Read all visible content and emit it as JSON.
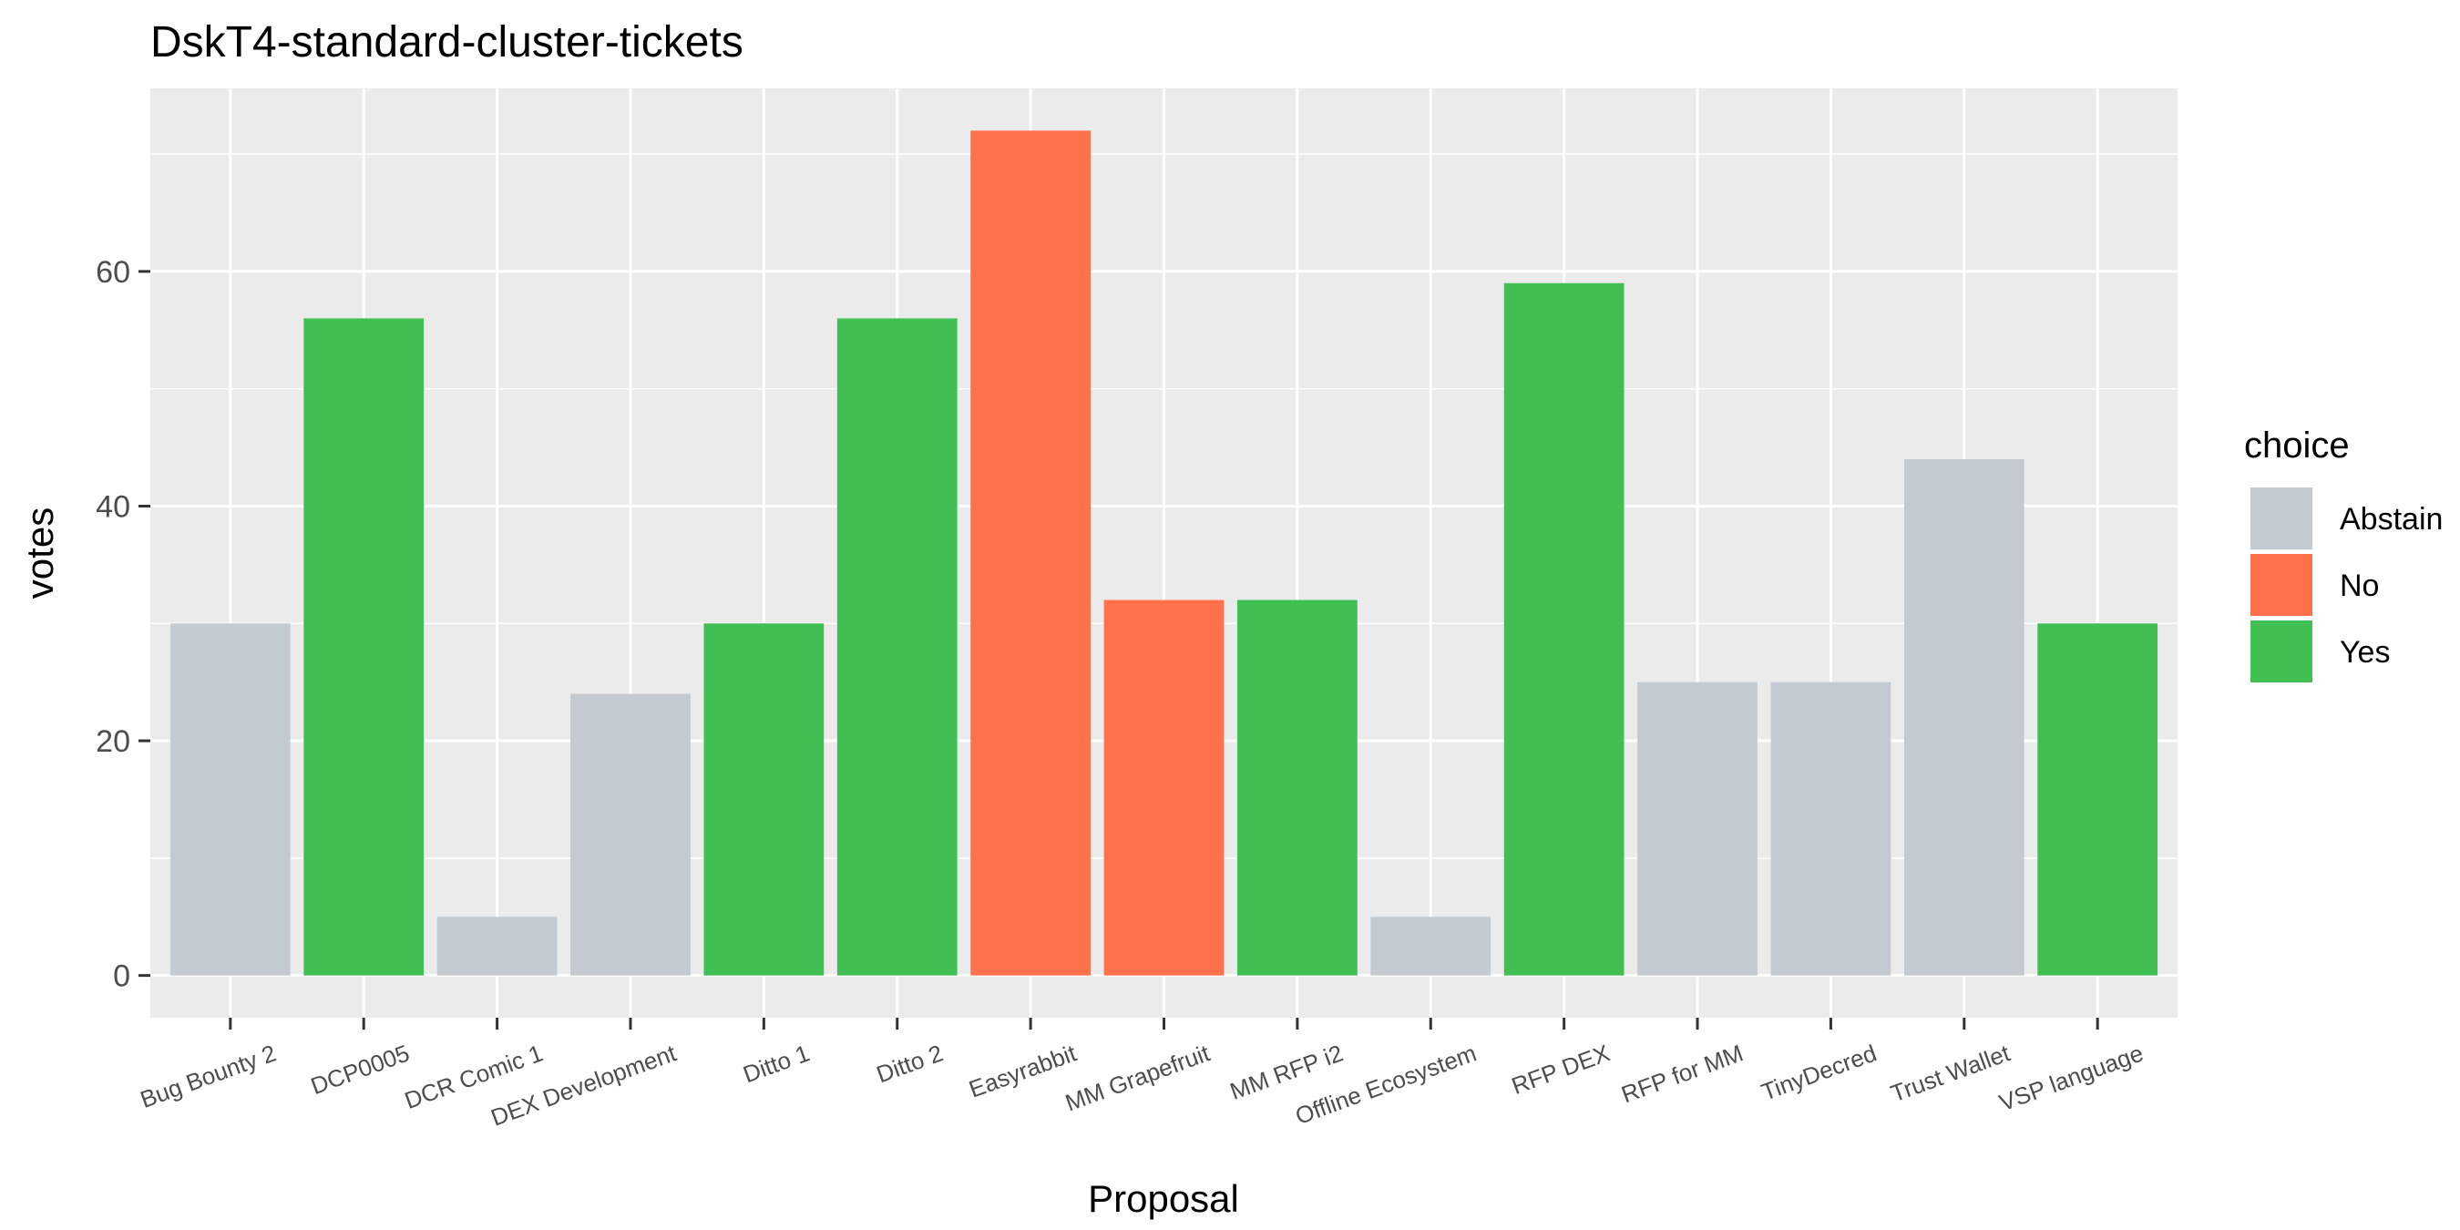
{
  "chart_data": {
    "type": "bar",
    "title": "DskT4-standard-cluster-tickets",
    "xlabel": "Proposal",
    "ylabel": "votes",
    "ylim": [
      -3.6,
      75.6
    ],
    "yticks": [
      0,
      20,
      40,
      60
    ],
    "grid": true,
    "legend": {
      "title": "choice",
      "position": "right"
    },
    "categories": [
      "Bug Bounty 2",
      "DCP0005",
      "DCR Comic 1",
      "DEX Development",
      "Ditto 1",
      "Ditto 2",
      "Easyrabbit",
      "MM Grapefruit",
      "MM RFP i2",
      "Offline Ecosystem",
      "RFP DEX",
      "RFP for MM",
      "TinyDecred",
      "Trust Wallet",
      "VSP language"
    ],
    "values": [
      30,
      56,
      5,
      24,
      30,
      56,
      72,
      32,
      32,
      5,
      59,
      25,
      25,
      44,
      30
    ],
    "choices": [
      "Abstain",
      "Yes",
      "Abstain",
      "Abstain",
      "Yes",
      "Yes",
      "No",
      "No",
      "Yes",
      "Abstain",
      "Yes",
      "Abstain",
      "Abstain",
      "Abstain",
      "Yes"
    ],
    "series": [
      {
        "name": "Abstain",
        "color": "#c4cad2"
      },
      {
        "name": "No",
        "color": "#ff724c"
      },
      {
        "name": "Yes",
        "color": "#41bf53"
      }
    ]
  }
}
